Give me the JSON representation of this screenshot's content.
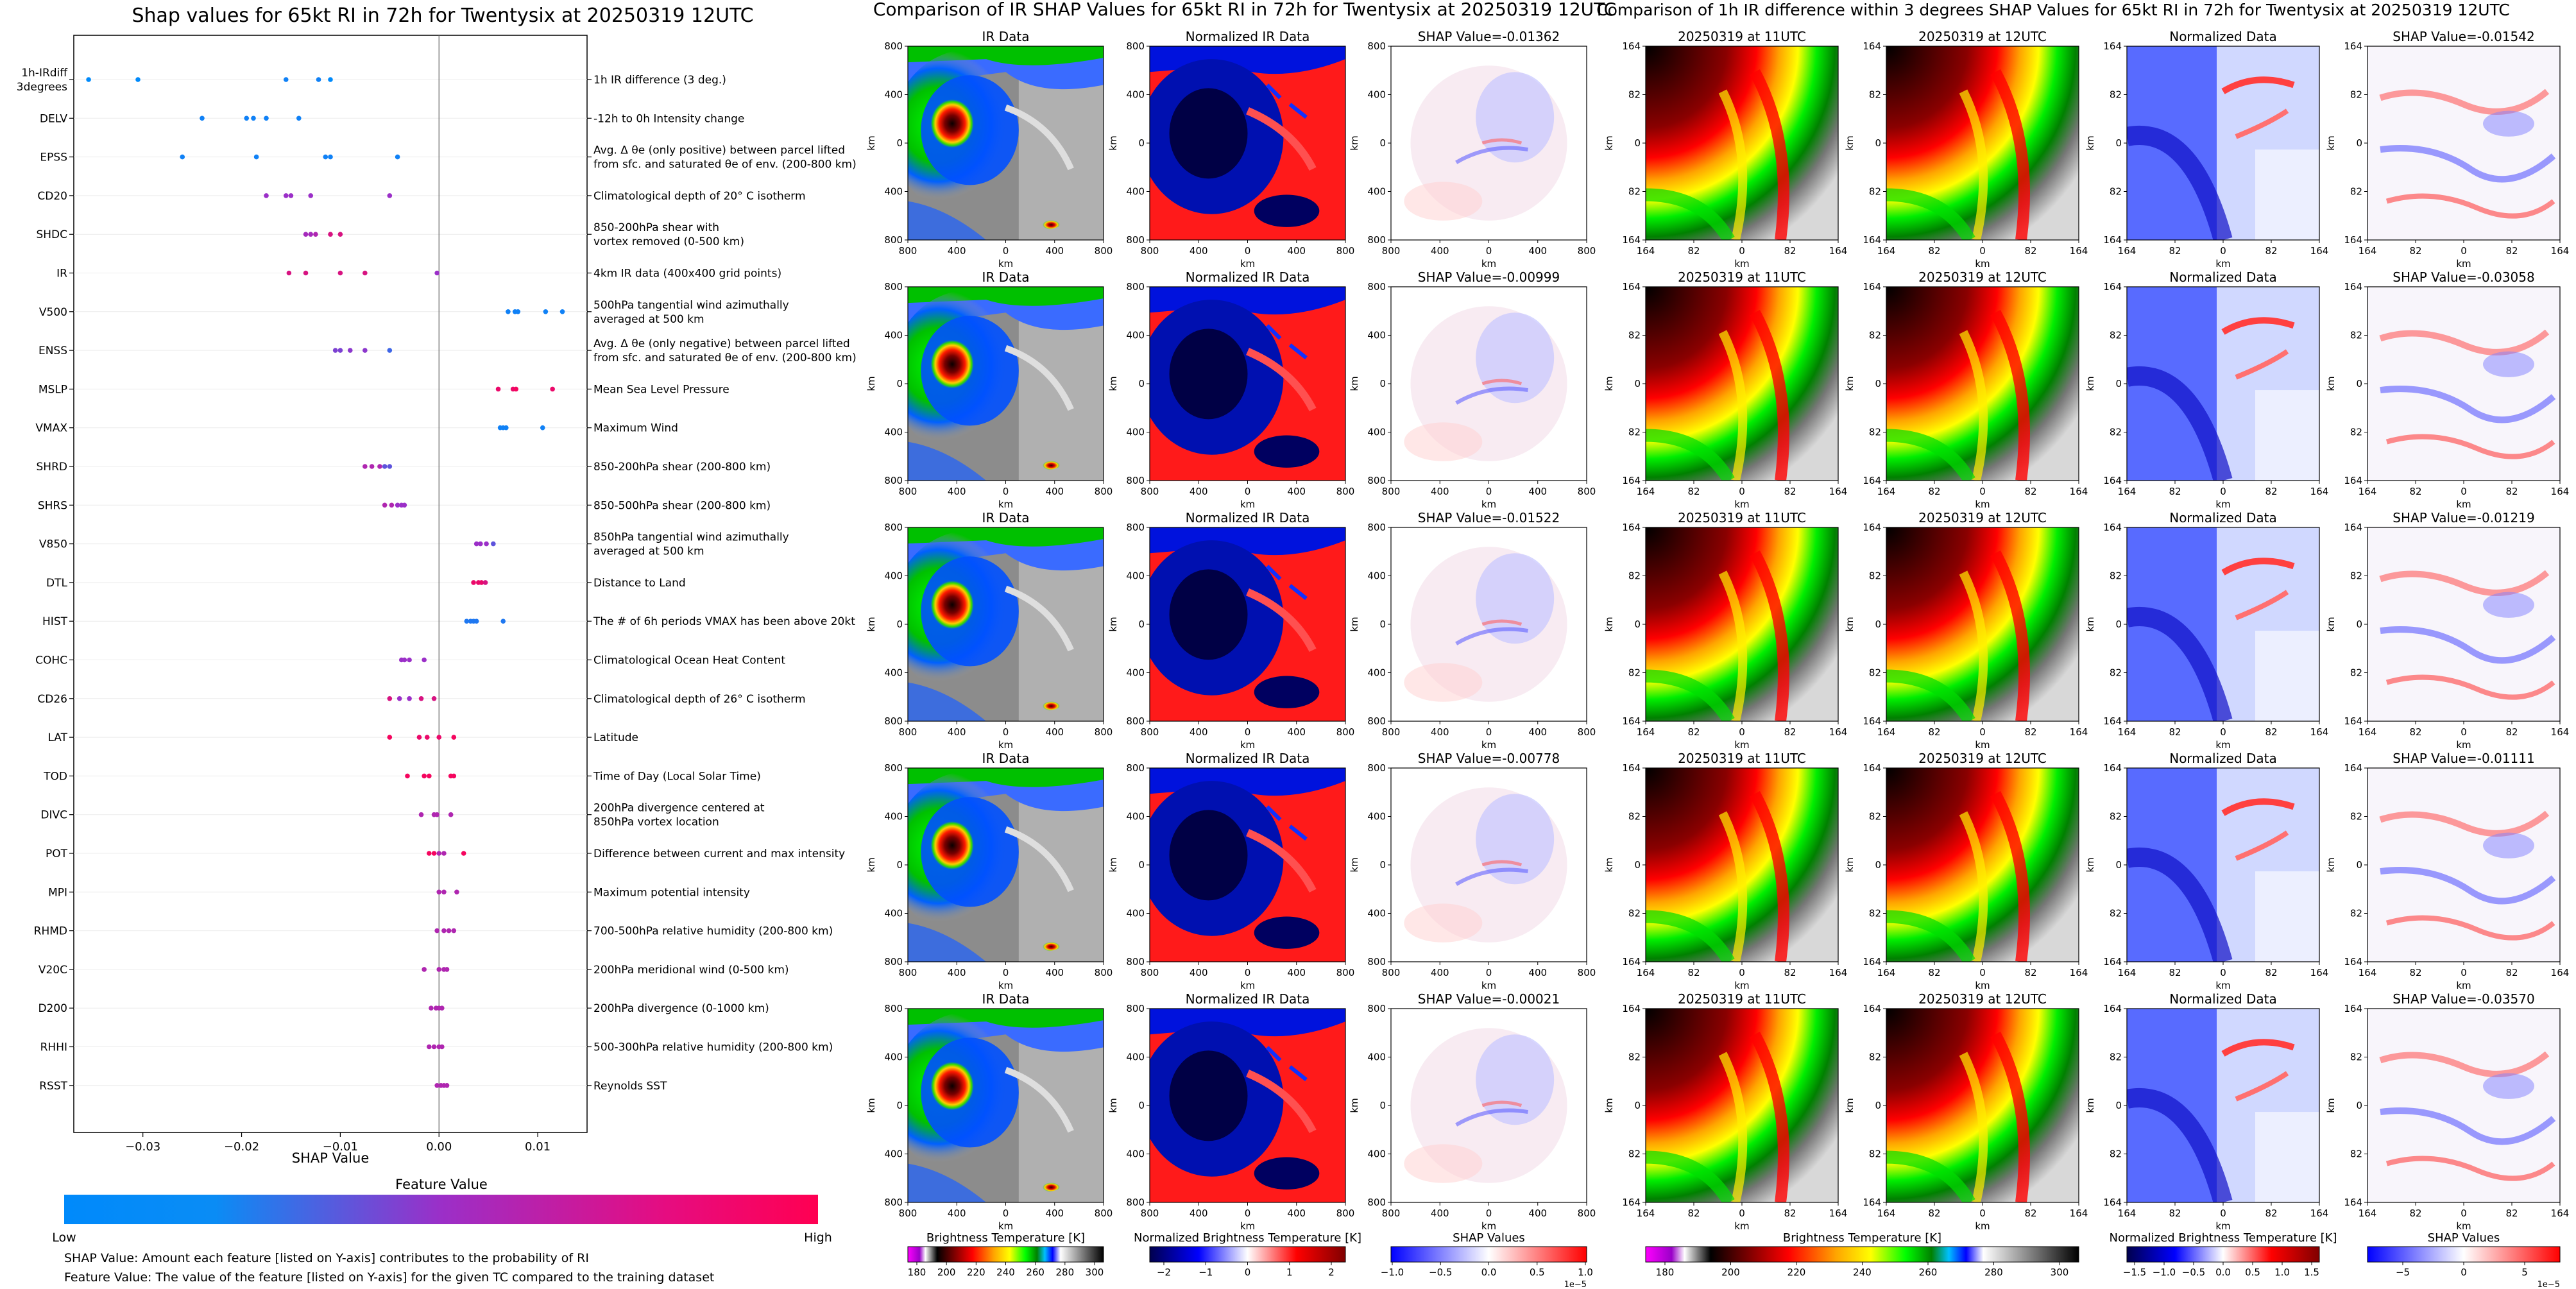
{
  "left_panel": {
    "title": "Shap values for 65kt RI in 72h for Twentysix at 20250319 12UTC",
    "xlabel": "SHAP Value",
    "colorbar_title": "Feature Value",
    "colorbar_low": "Low",
    "colorbar_high": "High",
    "footnote_1": "SHAP Value: Amount each feature [listed on Y-axis] contributes to the probability of RI",
    "footnote_2": "Feature Value: The value of the feature [listed on Y-axis] for the given TC compared to the training dataset"
  },
  "chart_data": {
    "type": "scatter",
    "title": "Shap values for 65kt RI in 72h for Twentysix at 20250319 12UTC",
    "xlabel": "SHAP Value",
    "xlim": [
      -0.037,
      0.015
    ],
    "xticks": [
      "-0.03",
      "-0.02",
      "-0.01",
      "0.00",
      "0.01"
    ],
    "xtick_values": [
      -0.03,
      -0.02,
      -0.01,
      0.0,
      0.01
    ],
    "colormap": [
      "#008afb",
      "#9b2fc8",
      "#ff0052"
    ],
    "features": [
      {
        "code": "1h-IRdiff\n3degrees",
        "desc": [
          "1h IR difference (3 deg.)"
        ],
        "shap": [
          -0.0355,
          -0.0305,
          -0.0155,
          -0.0122,
          -0.011
        ],
        "fv": [
          0.0,
          0.0,
          0.05,
          0.05,
          0.0
        ]
      },
      {
        "code": "DELV",
        "desc": [
          "-12h to 0h Intensity change"
        ],
        "shap": [
          -0.024,
          -0.0195,
          -0.0188,
          -0.0175,
          -0.0142
        ],
        "fv": [
          0.05,
          0.05,
          0.05,
          0.05,
          0.05
        ]
      },
      {
        "code": "EPSS",
        "desc": [
          "Avg. Δ θe (only positive) between parcel lifted",
          "from sfc. and saturated θe of env. (200-800 km)"
        ],
        "shap": [
          -0.026,
          -0.0185,
          -0.0115,
          -0.011,
          -0.0042
        ],
        "fv": [
          0.05,
          0.05,
          0.05,
          0.05,
          0.05
        ]
      },
      {
        "code": "CD20",
        "desc": [
          "Climatological depth of 20° C isotherm"
        ],
        "shap": [
          -0.0175,
          -0.0155,
          -0.015,
          -0.013,
          -0.005
        ],
        "fv": [
          0.5,
          0.5,
          0.5,
          0.5,
          0.5
        ]
      },
      {
        "code": "SHDC",
        "desc": [
          "850-200hPa shear with",
          "vortex removed (0-500 km)"
        ],
        "shap": [
          -0.0135,
          -0.013,
          -0.0125,
          -0.011,
          -0.01
        ],
        "fv": [
          0.55,
          0.55,
          0.6,
          0.8,
          0.8
        ]
      },
      {
        "code": "IR",
        "desc": [
          "4km IR data (400x400 grid points)"
        ],
        "shap": [
          -0.0152,
          -0.0135,
          -0.01,
          -0.0075,
          -0.0002
        ],
        "fv": [
          0.8,
          0.8,
          0.8,
          0.8,
          0.5
        ]
      },
      {
        "code": "V500",
        "desc": [
          "500hPa tangential wind azimuthally",
          "averaged at 500 km"
        ],
        "shap": [
          0.007,
          0.0077,
          0.008,
          0.0108,
          0.0125
        ],
        "fv": [
          0.05,
          0.05,
          0.05,
          0.05,
          0.05
        ]
      },
      {
        "code": "ENSS",
        "desc": [
          "Avg. Δ θe (only negative) between parcel lifted",
          "from sfc. and saturated θe of env. (200-800 km)"
        ],
        "shap": [
          -0.0105,
          -0.01,
          -0.009,
          -0.0075,
          -0.005
        ],
        "fv": [
          0.4,
          0.4,
          0.45,
          0.45,
          0.2
        ]
      },
      {
        "code": "MSLP",
        "desc": [
          "Mean Sea Level Pressure"
        ],
        "shap": [
          0.006,
          0.0075,
          0.0078,
          0.0115
        ],
        "fv": [
          0.9,
          0.9,
          0.95,
          0.9
        ]
      },
      {
        "code": "VMAX",
        "desc": [
          "Maximum Wind"
        ],
        "shap": [
          0.0062,
          0.0065,
          0.0068,
          0.0105
        ],
        "fv": [
          0.05,
          0.05,
          0.05,
          0.05
        ]
      },
      {
        "code": "SHRD",
        "desc": [
          "850-200hPa shear (200-800 km)"
        ],
        "shap": [
          -0.0075,
          -0.0068,
          -0.006,
          -0.0055,
          -0.005
        ],
        "fv": [
          0.6,
          0.6,
          0.6,
          0.3,
          0.3
        ]
      },
      {
        "code": "SHRS",
        "desc": [
          "850-500hPa shear (200-800 km)"
        ],
        "shap": [
          -0.0055,
          -0.0048,
          -0.0042,
          -0.0038,
          -0.0035
        ],
        "fv": [
          0.6,
          0.6,
          0.5,
          0.5,
          0.5
        ]
      },
      {
        "code": "V850",
        "desc": [
          "850hPa tangential wind azimuthally",
          "averaged at 500 km"
        ],
        "shap": [
          0.0038,
          0.0042,
          0.0048,
          0.0055
        ],
        "fv": [
          0.5,
          0.5,
          0.5,
          0.3
        ]
      },
      {
        "code": "DTL",
        "desc": [
          "Distance to Land"
        ],
        "shap": [
          0.0035,
          0.004,
          0.0043,
          0.0047
        ],
        "fv": [
          0.9,
          0.9,
          0.9,
          0.8
        ]
      },
      {
        "code": "HIST",
        "desc": [
          "The # of 6h periods VMAX has been above 20kt"
        ],
        "shap": [
          0.0028,
          0.0032,
          0.0035,
          0.0038,
          0.0065
        ],
        "fv": [
          0.1,
          0.1,
          0.1,
          0.1,
          0.1
        ]
      },
      {
        "code": "COHC",
        "desc": [
          "Climatological Ocean Heat Content"
        ],
        "shap": [
          -0.0038,
          -0.0035,
          -0.003,
          -0.0015
        ],
        "fv": [
          0.5,
          0.5,
          0.5,
          0.5
        ]
      },
      {
        "code": "CD26",
        "desc": [
          "Climatological depth of 26° C isotherm"
        ],
        "shap": [
          -0.005,
          -0.004,
          -0.003,
          -0.0018,
          -0.0005
        ],
        "fv": [
          0.8,
          0.5,
          0.5,
          0.8,
          0.8
        ]
      },
      {
        "code": "LAT",
        "desc": [
          "Latitude"
        ],
        "shap": [
          -0.005,
          -0.002,
          -0.0012,
          0.0,
          0.0015
        ],
        "fv": [
          0.95,
          0.9,
          0.9,
          0.9,
          0.95
        ]
      },
      {
        "code": "TOD",
        "desc": [
          "Time of Day (Local Solar Time)"
        ],
        "shap": [
          -0.0032,
          -0.0015,
          -0.001,
          0.0012,
          0.0015
        ],
        "fv": [
          0.95,
          0.95,
          0.95,
          0.95,
          0.95
        ]
      },
      {
        "code": "DIVC",
        "desc": [
          "200hPa divergence centered at",
          "850hPa vortex location"
        ],
        "shap": [
          -0.0018,
          -0.0005,
          -0.0002,
          0.0012
        ],
        "fv": [
          0.6,
          0.6,
          0.6,
          0.6
        ]
      },
      {
        "code": "POT",
        "desc": [
          "Difference between current and max intensity"
        ],
        "shap": [
          -0.001,
          -0.0005,
          0.0,
          0.0005,
          0.0025
        ],
        "fv": [
          0.95,
          0.95,
          0.6,
          0.6,
          0.95
        ]
      },
      {
        "code": "MPI",
        "desc": [
          "Maximum potential intensity"
        ],
        "shap": [
          0.0,
          0.0005,
          0.0018
        ],
        "fv": [
          0.6,
          0.6,
          0.6
        ]
      },
      {
        "code": "RHMD",
        "desc": [
          "700-500hPa relative humidity (200-800 km)"
        ],
        "shap": [
          -0.0002,
          0.0005,
          0.001,
          0.0015
        ],
        "fv": [
          0.6,
          0.6,
          0.6,
          0.6
        ]
      },
      {
        "code": "V20C",
        "desc": [
          "200hPa meridional wind (0-500 km)"
        ],
        "shap": [
          -0.0015,
          0.0,
          0.0005,
          0.0008
        ],
        "fv": [
          0.6,
          0.6,
          0.6,
          0.6
        ]
      },
      {
        "code": "D200",
        "desc": [
          "200hPa divergence (0-1000 km)"
        ],
        "shap": [
          -0.0008,
          -0.0003,
          0.0,
          0.0003
        ],
        "fv": [
          0.6,
          0.6,
          0.6,
          0.6
        ]
      },
      {
        "code": "RHHI",
        "desc": [
          "500-300hPa relative humidity (200-800 km)"
        ],
        "shap": [
          -0.001,
          -0.0005,
          0.0,
          0.0003
        ],
        "fv": [
          0.6,
          0.6,
          0.6,
          0.6
        ]
      },
      {
        "code": "RSST",
        "desc": [
          "Reynolds SST"
        ],
        "shap": [
          -0.0002,
          0.0002,
          0.0005,
          0.0008
        ],
        "fv": [
          0.6,
          0.6,
          0.6,
          0.6
        ]
      }
    ]
  },
  "middle_panel": {
    "title": "Comparison of IR SHAP Values for 65kt RI in 72h for Twentysix at 20250319 12UTC",
    "col_titles": [
      "IR Data",
      "Normalized IR Data"
    ],
    "shap_titles": [
      "SHAP Value=-0.01362",
      "SHAP Value=-0.00999",
      "SHAP Value=-0.01522",
      "SHAP Value=-0.00778",
      "SHAP Value=-0.00021"
    ],
    "x_ticks": [
      "800",
      "400",
      "0",
      "400",
      "800"
    ],
    "y_ticks": [
      "800",
      "400",
      "0",
      "400",
      "800"
    ],
    "axis_label": "km",
    "colorbars": [
      {
        "label": "Brightness Temperature [K]",
        "ticks": [
          "180",
          "200",
          "220",
          "240",
          "260",
          "280",
          "300"
        ],
        "offset": ""
      },
      {
        "label": "Normalized Brightness Temperature [K]",
        "ticks": [
          "−2",
          "−1",
          "0",
          "1",
          "2"
        ],
        "offset": ""
      },
      {
        "label": "SHAP Values",
        "ticks": [
          "−1.0",
          "−0.5",
          "0.0",
          "0.5",
          "1.0"
        ],
        "offset": "1e−5"
      }
    ]
  },
  "right_panel": {
    "title": "Comparison of 1h IR difference within 3 degrees SHAP Values for 65kt RI in 72h for Twentysix at 20250319 12UTC",
    "col_titles": [
      "20250319 at 11UTC",
      "20250319 at 12UTC",
      "Normalized Data"
    ],
    "shap_titles": [
      "SHAP Value=-0.01542",
      "SHAP Value=-0.03058",
      "SHAP Value=-0.01219",
      "SHAP Value=-0.01111",
      "SHAP Value=-0.03570"
    ],
    "x_ticks": [
      "164",
      "82",
      "0",
      "82",
      "164"
    ],
    "y_ticks": [
      "164",
      "82",
      "0",
      "82",
      "164"
    ],
    "axis_label": "km",
    "colorbars": [
      {
        "label": "Brightness Temperature [K]",
        "ticks": [
          "180",
          "200",
          "220",
          "240",
          "260",
          "280",
          "300"
        ],
        "offset": ""
      },
      {
        "label": "Normalized Brightness Temperature [K]",
        "ticks": [
          "−1.5",
          "−1.0",
          "−0.5",
          "0.0",
          "0.5",
          "1.0",
          "1.5"
        ],
        "offset": ""
      },
      {
        "label": "SHAP Values",
        "ticks": [
          "−5",
          "0",
          "5"
        ],
        "offset": "1e−5"
      }
    ]
  }
}
